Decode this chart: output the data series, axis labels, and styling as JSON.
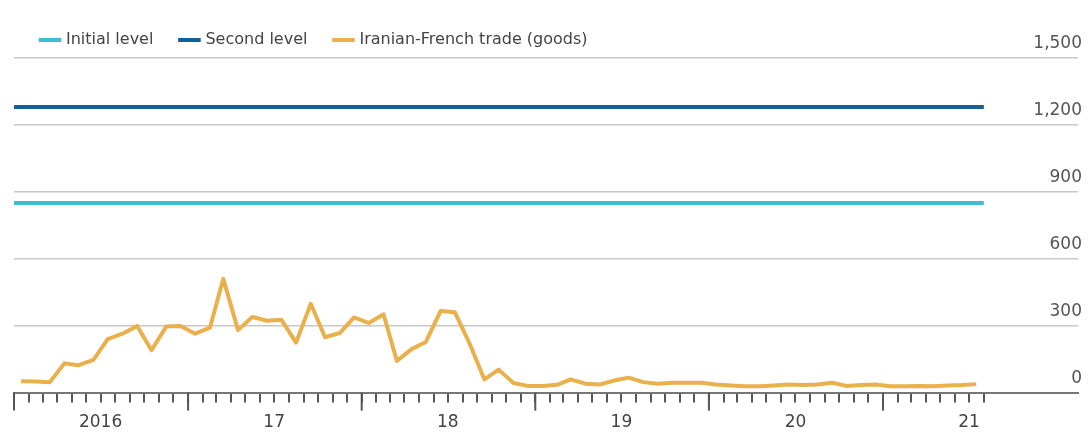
{
  "chart_data": {
    "type": "line",
    "legend": "top left",
    "grid": "y",
    "marker": "none",
    "line_style": "solid",
    "x": [
      "2016-01-16",
      "2016-02-16",
      "2016-03-16",
      "2016-04-16",
      "2016-05-16",
      "2016-06-16",
      "2016-07-16",
      "2016-08-16",
      "2016-09-16",
      "2016-10-16",
      "2016-11-16",
      "2016-12-16",
      "2017-01-16",
      "2017-02-16",
      "2017-03-16",
      "2017-04-16",
      "2017-05-16",
      "2017-06-16",
      "2017-07-16",
      "2017-08-16",
      "2017-09-16",
      "2017-10-16",
      "2017-11-16",
      "2017-12-16",
      "2018-01-16",
      "2018-02-16",
      "2018-03-16",
      "2018-04-16",
      "2018-05-16",
      "2018-06-16",
      "2018-07-16",
      "2018-08-16",
      "2018-09-16",
      "2018-10-16",
      "2018-11-16",
      "2018-12-16",
      "2019-01-16",
      "2019-02-16",
      "2019-03-16",
      "2019-04-16",
      "2019-05-16",
      "2019-06-16",
      "2019-07-16",
      "2019-08-16",
      "2019-09-16",
      "2019-10-16",
      "2019-11-16",
      "2019-12-16",
      "2020-01-16",
      "2020-02-16",
      "2020-03-16",
      "2020-04-16",
      "2020-05-16",
      "2020-06-16",
      "2020-07-16",
      "2020-08-16",
      "2020-09-16",
      "2020-10-16",
      "2020-11-16",
      "2020-12-16",
      "2021-01-16",
      "2021-02-16",
      "2021-03-16",
      "2021-04-16",
      "2021-05-16",
      "2021-06-16",
      "2021-07-16"
    ],
    "series": [
      {
        "name": "Initial level",
        "color": "#3fbcd3",
        "x": [
          "2016-01-01",
          "2021-08-01"
        ],
        "values": [
          850,
          850
        ]
      },
      {
        "name": "Second level",
        "color": "#10609c",
        "x": [
          "2016-01-01",
          "2021-08-01"
        ],
        "values": [
          1280,
          1280
        ]
      },
      {
        "name": "Iranian-French trade (goods)",
        "color": "#e9b04c",
        "values": [
          51,
          50,
          46,
          131,
          123,
          147,
          240,
          264,
          299,
          190,
          296,
          299,
          264,
          291,
          510,
          280,
          339,
          322,
          327,
          224,
          398,
          248,
          267,
          337,
          312,
          351,
          142,
          195,
          227,
          366,
          360,
          219,
          59,
          103,
          43,
          30,
          30,
          35,
          59,
          40,
          36,
          54,
          67,
          47,
          40,
          44,
          44,
          44,
          36,
          32,
          28,
          28,
          32,
          36,
          34,
          36,
          44,
          30,
          34,
          36,
          28,
          28,
          30,
          28,
          32,
          34,
          38
        ]
      }
    ],
    "xlim": [
      "2016-01-01",
      "2022-02-15"
    ],
    "xticks": [
      {
        "value": "2016-01-01",
        "label": null
      },
      {
        "value": "2016-02-01",
        "label": null
      },
      {
        "value": "2016-03-01",
        "label": null
      },
      {
        "value": "2016-04-01",
        "label": null
      },
      {
        "value": "2016-05-01",
        "label": null
      },
      {
        "value": "2016-06-01",
        "label": null
      },
      {
        "value": "2016-07-01",
        "label": "2016"
      },
      {
        "value": "2016-08-01",
        "label": null
      },
      {
        "value": "2016-09-01",
        "label": null
      },
      {
        "value": "2016-10-01",
        "label": null
      },
      {
        "value": "2016-11-01",
        "label": null
      },
      {
        "value": "2016-12-01",
        "label": null
      },
      {
        "value": "2017-01-01",
        "label": null
      },
      {
        "value": "2017-02-01",
        "label": null
      },
      {
        "value": "2017-03-01",
        "label": null
      },
      {
        "value": "2017-04-01",
        "label": null
      },
      {
        "value": "2017-05-01",
        "label": null
      },
      {
        "value": "2017-06-01",
        "label": null
      },
      {
        "value": "2017-07-01",
        "label": "17"
      },
      {
        "value": "2017-08-01",
        "label": null
      },
      {
        "value": "2017-09-01",
        "label": null
      },
      {
        "value": "2017-10-01",
        "label": null
      },
      {
        "value": "2017-11-01",
        "label": null
      },
      {
        "value": "2017-12-01",
        "label": null
      },
      {
        "value": "2018-01-01",
        "label": null
      },
      {
        "value": "2018-02-01",
        "label": null
      },
      {
        "value": "2018-03-01",
        "label": null
      },
      {
        "value": "2018-04-01",
        "label": null
      },
      {
        "value": "2018-05-01",
        "label": null
      },
      {
        "value": "2018-06-01",
        "label": null
      },
      {
        "value": "2018-07-01",
        "label": "18"
      },
      {
        "value": "2018-08-01",
        "label": null
      },
      {
        "value": "2018-09-01",
        "label": null
      },
      {
        "value": "2018-10-01",
        "label": null
      },
      {
        "value": "2018-11-01",
        "label": null
      },
      {
        "value": "2018-12-01",
        "label": null
      },
      {
        "value": "2019-01-01",
        "label": null
      },
      {
        "value": "2019-02-01",
        "label": null
      },
      {
        "value": "2019-03-01",
        "label": null
      },
      {
        "value": "2019-04-01",
        "label": null
      },
      {
        "value": "2019-05-01",
        "label": null
      },
      {
        "value": "2019-06-01",
        "label": null
      },
      {
        "value": "2019-07-01",
        "label": "19"
      },
      {
        "value": "2019-08-01",
        "label": null
      },
      {
        "value": "2019-09-01",
        "label": null
      },
      {
        "value": "2019-10-01",
        "label": null
      },
      {
        "value": "2019-11-01",
        "label": null
      },
      {
        "value": "2019-12-01",
        "label": null
      },
      {
        "value": "2020-01-01",
        "label": null
      },
      {
        "value": "2020-02-01",
        "label": null
      },
      {
        "value": "2020-03-01",
        "label": null
      },
      {
        "value": "2020-04-01",
        "label": null
      },
      {
        "value": "2020-05-01",
        "label": null
      },
      {
        "value": "2020-06-01",
        "label": null
      },
      {
        "value": "2020-07-01",
        "label": "20"
      },
      {
        "value": "2020-08-01",
        "label": null
      },
      {
        "value": "2020-09-01",
        "label": null
      },
      {
        "value": "2020-10-01",
        "label": null
      },
      {
        "value": "2020-11-01",
        "label": null
      },
      {
        "value": "2020-12-01",
        "label": null
      },
      {
        "value": "2021-01-01",
        "label": null
      },
      {
        "value": "2021-02-01",
        "label": null
      },
      {
        "value": "2021-03-01",
        "label": null
      },
      {
        "value": "2021-04-01",
        "label": null
      },
      {
        "value": "2021-05-01",
        "label": null
      },
      {
        "value": "2021-06-01",
        "label": null
      },
      {
        "value": "2021-07-01",
        "label": "21"
      },
      {
        "value": "2021-08-01",
        "label": null
      }
    ],
    "ylim": [
      0,
      1500
    ],
    "yticks": [
      0,
      300,
      600,
      900,
      {
        "value": 1200,
        "label": "1,200"
      },
      {
        "value": 1500,
        "label": "1,500"
      }
    ]
  }
}
